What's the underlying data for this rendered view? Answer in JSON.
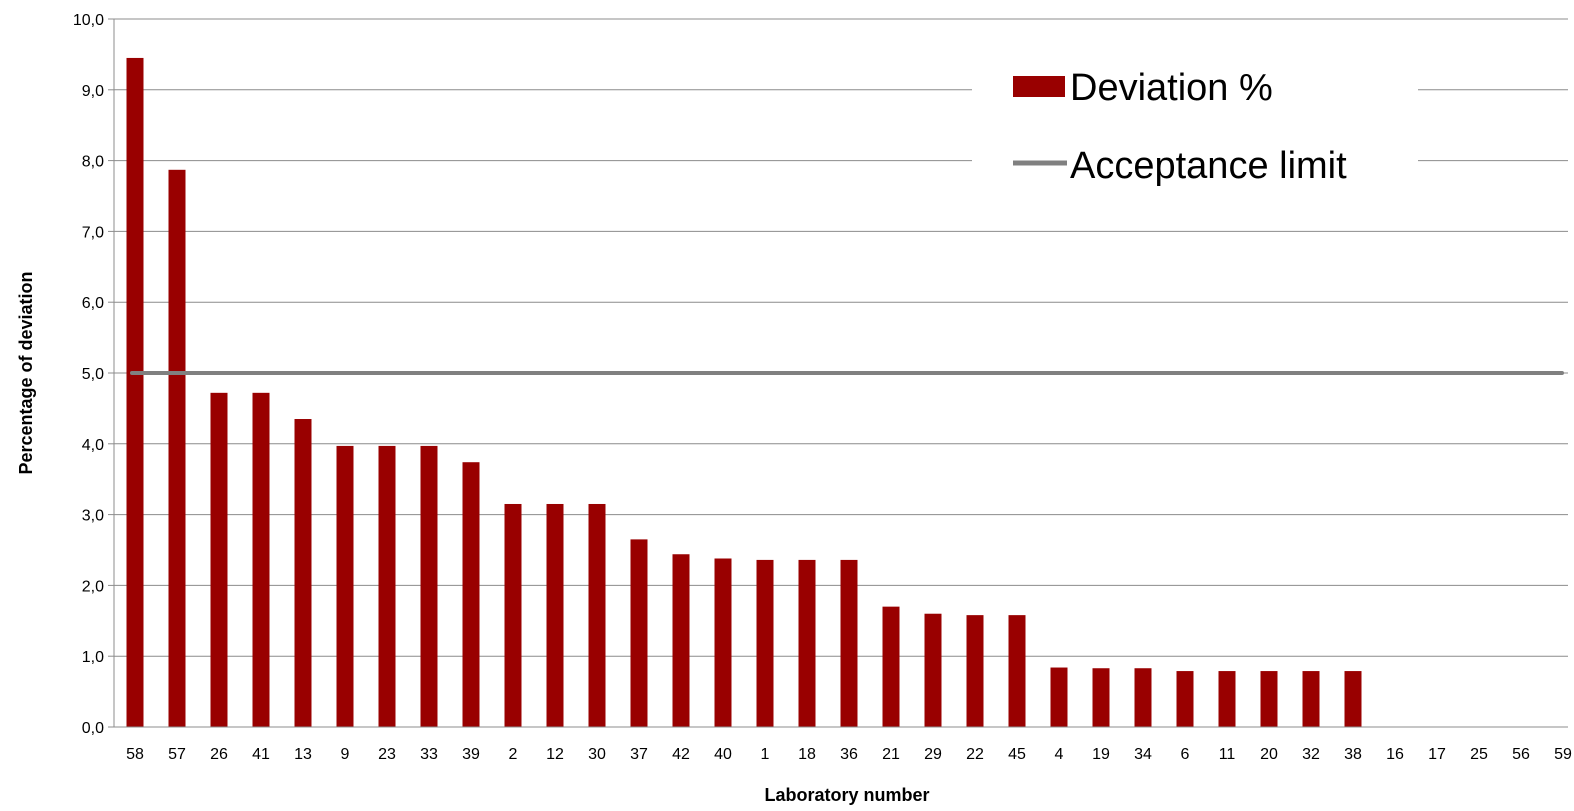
{
  "chart_data": {
    "type": "bar",
    "title": "",
    "xlabel": "Laboratory number",
    "ylabel": "Percentage of deviation",
    "ylim": [
      0,
      10
    ],
    "y_ticks": [
      "0,0",
      "1,0",
      "2,0",
      "3,0",
      "4,0",
      "5,0",
      "6,0",
      "7,0",
      "8,0",
      "9,0",
      "10,0"
    ],
    "categories": [
      "58",
      "57",
      "26",
      "41",
      "13",
      "9",
      "23",
      "33",
      "39",
      "2",
      "12",
      "30",
      "37",
      "42",
      "40",
      "1",
      "18",
      "36",
      "21",
      "29",
      "22",
      "45",
      "4",
      "19",
      "34",
      "6",
      "11",
      "20",
      "32",
      "38",
      "16",
      "17",
      "25",
      "56",
      "59"
    ],
    "series": [
      {
        "name": "Deviation %",
        "type": "bar",
        "color": "#990000",
        "values": [
          9.45,
          7.87,
          4.72,
          4.72,
          4.35,
          3.97,
          3.97,
          3.97,
          3.74,
          3.15,
          3.15,
          3.15,
          2.65,
          2.44,
          2.38,
          2.36,
          2.36,
          2.36,
          1.7,
          1.6,
          1.58,
          1.58,
          0.84,
          0.83,
          0.83,
          0.79,
          0.79,
          0.79,
          0.79,
          0.79,
          0,
          0,
          0,
          0,
          0
        ]
      },
      {
        "name": "Acceptance limit",
        "type": "line",
        "color": "#808080",
        "value": 5.0
      }
    ],
    "grid": true,
    "legend_position": "top-right"
  }
}
